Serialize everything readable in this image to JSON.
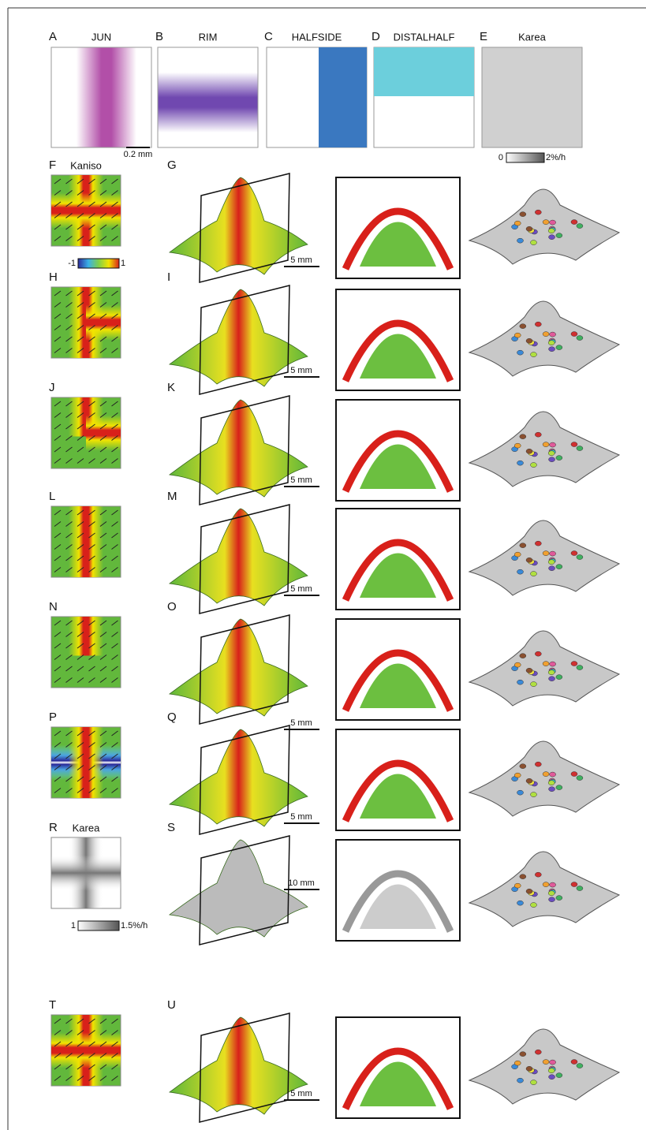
{
  "top_panels": [
    {
      "letter": "A",
      "title": "JUN"
    },
    {
      "letter": "B",
      "title": "RIM"
    },
    {
      "letter": "C",
      "title": "HALFSIDE"
    },
    {
      "letter": "D",
      "title": "DISTALHALF"
    },
    {
      "letter": "E",
      "title": "Karea"
    }
  ],
  "top_scale_bar": "0.2 mm",
  "top_colorbar": {
    "min_label": "0",
    "max_label": "2%/h"
  },
  "rows": [
    {
      "left_letter": "F",
      "left_title": "Kaniso",
      "right_letter": "G",
      "scale_bar": "5 mm",
      "colorbar": {
        "min_label": "-1",
        "max_label": "1"
      }
    },
    {
      "left_letter": "H",
      "right_letter": "I",
      "scale_bar": "5 mm"
    },
    {
      "left_letter": "J",
      "right_letter": "K",
      "scale_bar": "5 mm"
    },
    {
      "left_letter": "L",
      "right_letter": "M",
      "scale_bar": "5 mm"
    },
    {
      "left_letter": "N",
      "right_letter": "O",
      "scale_bar": "5 mm"
    },
    {
      "left_letter": "P",
      "right_letter": "Q",
      "scale_bar": "5 mm"
    },
    {
      "left_letter": "R",
      "left_title": "Karea",
      "right_letter": "S",
      "scale_bar": "10 mm",
      "colorbar": {
        "min_label": "1",
        "max_label": "1.5%/h"
      }
    },
    {
      "left_letter": "T",
      "right_letter": "U",
      "scale_bar": "5 mm"
    }
  ]
}
